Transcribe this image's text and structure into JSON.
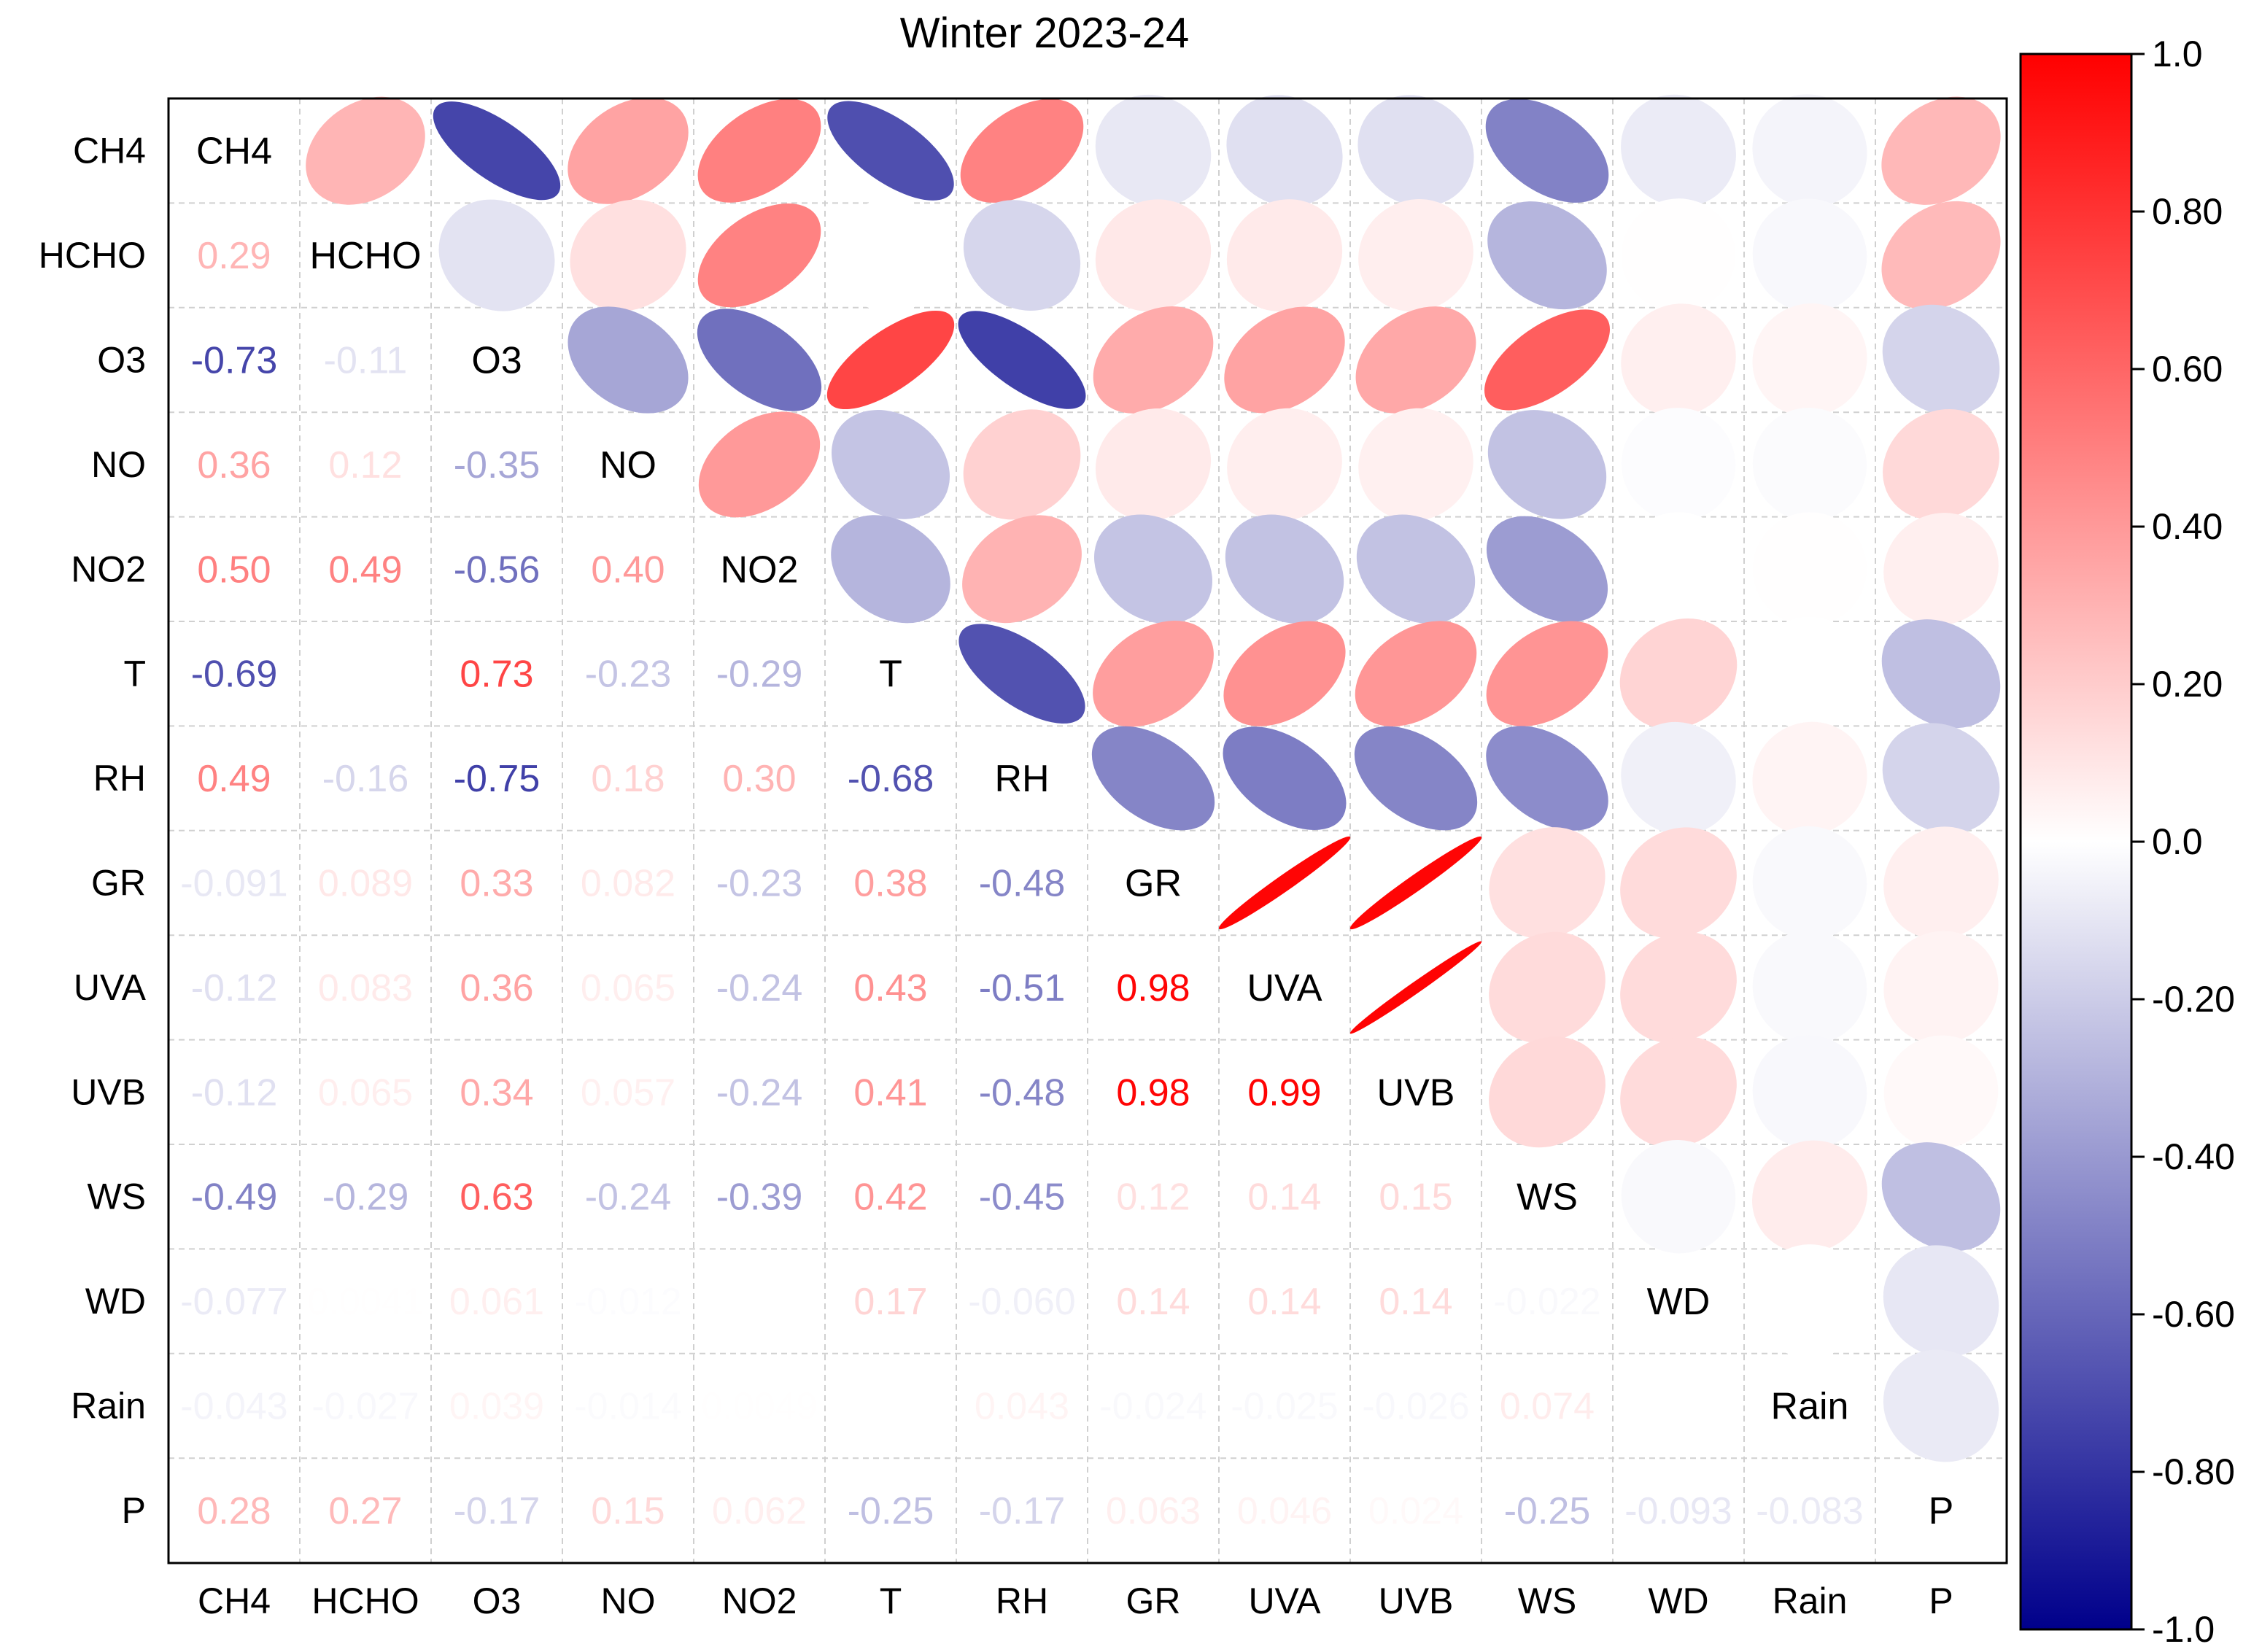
{
  "chart_data": {
    "type": "heatmap",
    "subtype": "correlation-matrix-ellipse",
    "title": "Winter 2023-24",
    "variables": [
      "CH4",
      "HCHO",
      "O3",
      "NO",
      "NO2",
      "T",
      "RH",
      "GR",
      "UVA",
      "UVB",
      "WS",
      "WD",
      "Rain",
      "P"
    ],
    "lower_triangle_labels": [
      [],
      [
        "0.29"
      ],
      [
        "-0.73",
        "-0.11"
      ],
      [
        "0.36",
        "0.12",
        "-0.35"
      ],
      [
        "0.50",
        "0.49",
        "-0.56",
        "0.40"
      ],
      [
        "-0.69",
        "0.0",
        "0.73",
        "-0.23",
        "-0.29"
      ],
      [
        "0.49",
        "-0.16",
        "-0.75",
        "0.18",
        "0.30",
        "-0.68"
      ],
      [
        "-0.091",
        "0.089",
        "0.33",
        "0.082",
        "-0.23",
        "0.38",
        "-0.48"
      ],
      [
        "-0.12",
        "0.083",
        "0.36",
        "0.065",
        "-0.24",
        "0.43",
        "-0.51",
        "0.98"
      ],
      [
        "-0.12",
        "0.065",
        "0.34",
        "0.057",
        "-0.24",
        "0.41",
        "-0.48",
        "0.98",
        "0.99"
      ],
      [
        "-0.49",
        "-0.29",
        "0.63",
        "-0.24",
        "-0.39",
        "0.42",
        "-0.45",
        "0.12",
        "0.14",
        "0.15"
      ],
      [
        "-0.077",
        "0.0041",
        "0.061",
        "-0.012",
        "0.0",
        "0.17",
        "-0.060",
        "0.14",
        "0.14",
        "0.14",
        "-0.022"
      ],
      [
        "-0.043",
        "-0.027",
        "0.039",
        "-0.014",
        "0.0049",
        "0.0",
        "0.043",
        "-0.024",
        "-0.025",
        "-0.026",
        "0.074",
        "0.0"
      ],
      [
        "0.28",
        "0.27",
        "-0.17",
        "0.15",
        "0.062",
        "-0.25",
        "-0.17",
        "0.063",
        "0.046",
        "0.024",
        "-0.25",
        "-0.093",
        "-0.083"
      ]
    ],
    "colorbar": {
      "min": -1.0,
      "max": 1.0,
      "ticks": [
        "1.0",
        "0.80",
        "0.60",
        "0.40",
        "0.20",
        "0.0",
        "-0.20",
        "-0.40",
        "-0.60",
        "-0.80",
        "-1.0"
      ],
      "color_low": "#00008b",
      "color_mid": "#ffffff",
      "color_high": "#ff0000"
    },
    "grid": true
  }
}
